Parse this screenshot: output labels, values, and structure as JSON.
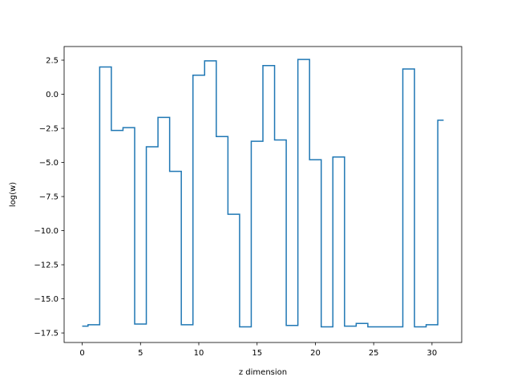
{
  "chart_data": {
    "type": "line",
    "drawstyle": "steps-mid",
    "xlabel": "z dimension",
    "ylabel": "log(w)",
    "xlim": [
      -1.55,
      32.55
    ],
    "ylim": [
      -18.2,
      3.5
    ],
    "xticks": [
      0,
      5,
      10,
      15,
      20,
      25,
      30
    ],
    "xtick_labels": [
      "0",
      "5",
      "10",
      "15",
      "20",
      "25",
      "30"
    ],
    "yticks": [
      2.5,
      0.0,
      -2.5,
      -5.0,
      -7.5,
      -10.0,
      -12.5,
      -15.0,
      -17.5
    ],
    "ytick_labels": [
      "2.5",
      "0.0",
      "−2.5",
      "−5.0",
      "−7.5",
      "−10.0",
      "−12.5",
      "−15.0",
      "−17.5"
    ],
    "grid": false,
    "series": [
      {
        "color": "#1f77b4",
        "x": [
          0,
          1,
          2,
          3,
          4,
          5,
          6,
          7,
          8,
          9,
          10,
          11,
          12,
          13,
          14,
          15,
          16,
          17,
          18,
          19,
          20,
          21,
          22,
          23,
          24,
          25,
          26,
          27,
          28,
          29,
          30,
          31
        ],
        "y": [
          -17.0,
          -16.9,
          2.0,
          -2.65,
          -2.45,
          -16.85,
          -3.85,
          -1.7,
          -5.65,
          -16.9,
          1.4,
          2.45,
          -3.1,
          -8.8,
          -17.05,
          -3.45,
          2.1,
          -3.35,
          -16.95,
          2.55,
          -4.8,
          -17.05,
          -4.6,
          -17.0,
          -16.8,
          -17.05,
          -17.05,
          -17.05,
          1.85,
          -17.05,
          -16.9,
          -1.9
        ]
      }
    ]
  }
}
